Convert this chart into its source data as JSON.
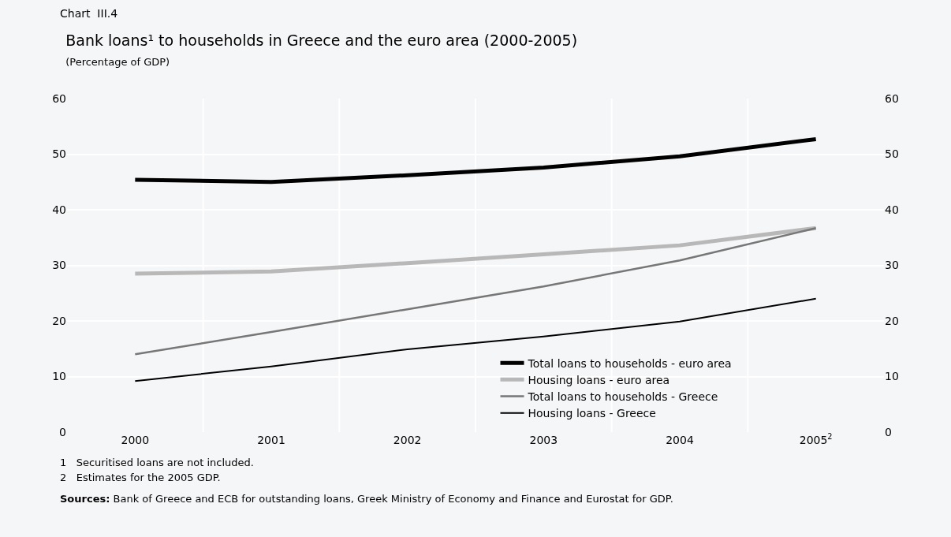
{
  "chart_data": {
    "type": "line",
    "title": "Bank loans¹ to households in Greece and the euro area (2000-2005)",
    "subtitle": "(Percentage of GDP)",
    "categories": [
      "2000",
      "2001",
      "2002",
      "2003",
      "2004",
      "2005$^{2}$"
    ],
    "series": [
      {
        "name": "Total loans to households - euro area",
        "color": "#000000",
        "values": [
          45.4,
          45.0,
          46.2,
          47.6,
          49.6,
          52.7
        ]
      },
      {
        "name": "Housing loans - euro area",
        "color": "#b8b8b8",
        "values": [
          28.5,
          28.9,
          30.4,
          32.0,
          33.6,
          36.7
        ]
      },
      {
        "name": "Total loans to households - Greece",
        "color": "#777777",
        "values": [
          14.0,
          18.0,
          22.1,
          26.2,
          30.9,
          36.7
        ]
      },
      {
        "name": "Housing loans - Greece",
        "color": "#000000",
        "values": [
          9.2,
          11.8,
          14.9,
          17.2,
          19.9,
          24.0
        ]
      }
    ],
    "ylim": [
      0,
      60
    ],
    "yticks": [
      0,
      10,
      20,
      30,
      40,
      50,
      60
    ],
    "y2lim": [
      0,
      60
    ],
    "y2ticks": [
      0,
      10,
      20,
      30,
      40,
      50,
      60
    ],
    "grid": true,
    "legend": "bottom right",
    "marker": "none",
    "line_style": "solid",
    "annotations": [
      "Chart  III.4",
      "1   Securitised loans are not included.",
      "2   Estimates for the 2005 GDP.",
      "Sources: Bank of Greece and ECB for outstanding loans, Greek Ministry of Economy and Finance and Eurostat for GDP."
    ]
  }
}
